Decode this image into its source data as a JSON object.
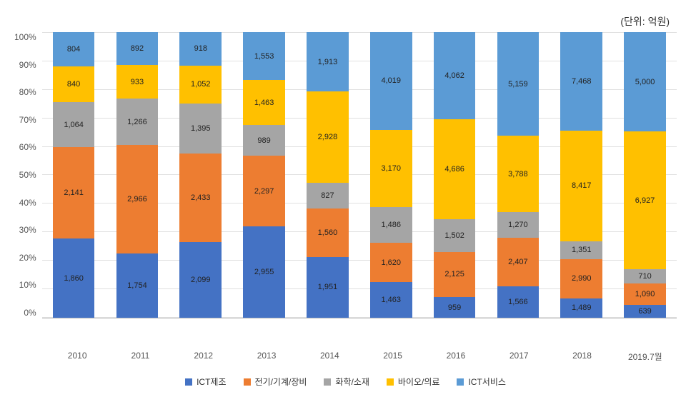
{
  "unit_label": "(단위: 억원)",
  "chart": {
    "type": "stacked-bar-100",
    "categories": [
      "2010",
      "2011",
      "2012",
      "2013",
      "2014",
      "2015",
      "2016",
      "2017",
      "2018",
      "2019.7월"
    ],
    "series": [
      {
        "name": "ICT제조",
        "color": "#4472c4",
        "values": [
          1860,
          1754,
          2099,
          2955,
          1951,
          1463,
          959,
          1566,
          1489,
          639
        ]
      },
      {
        "name": "전기/기계/장비",
        "color": "#ed7d31",
        "values": [
          2141,
          2966,
          2433,
          2297,
          1560,
          1620,
          2125,
          2407,
          2990,
          1090
        ]
      },
      {
        "name": "화학/소재",
        "color": "#a5a5a5",
        "values": [
          1064,
          1266,
          1395,
          989,
          827,
          1486,
          1502,
          1270,
          1351,
          710
        ]
      },
      {
        "name": "바이오/의료",
        "color": "#ffc000",
        "values": [
          840,
          933,
          1052,
          1463,
          2928,
          3170,
          4686,
          3788,
          8417,
          6927
        ]
      },
      {
        "name": "ICT서비스",
        "color": "#5b9bd5",
        "values": [
          804,
          892,
          918,
          1553,
          1913,
          4019,
          4062,
          5159,
          7468,
          5000
        ]
      }
    ],
    "y_ticks": [
      "0%",
      "10%",
      "20%",
      "30%",
      "40%",
      "50%",
      "60%",
      "70%",
      "80%",
      "90%",
      "100%"
    ],
    "background_color": "#ffffff",
    "grid_color": "#e0e0e0",
    "label_fontsize": 11,
    "axis_fontsize": 12,
    "bar_width_pct": 66
  }
}
